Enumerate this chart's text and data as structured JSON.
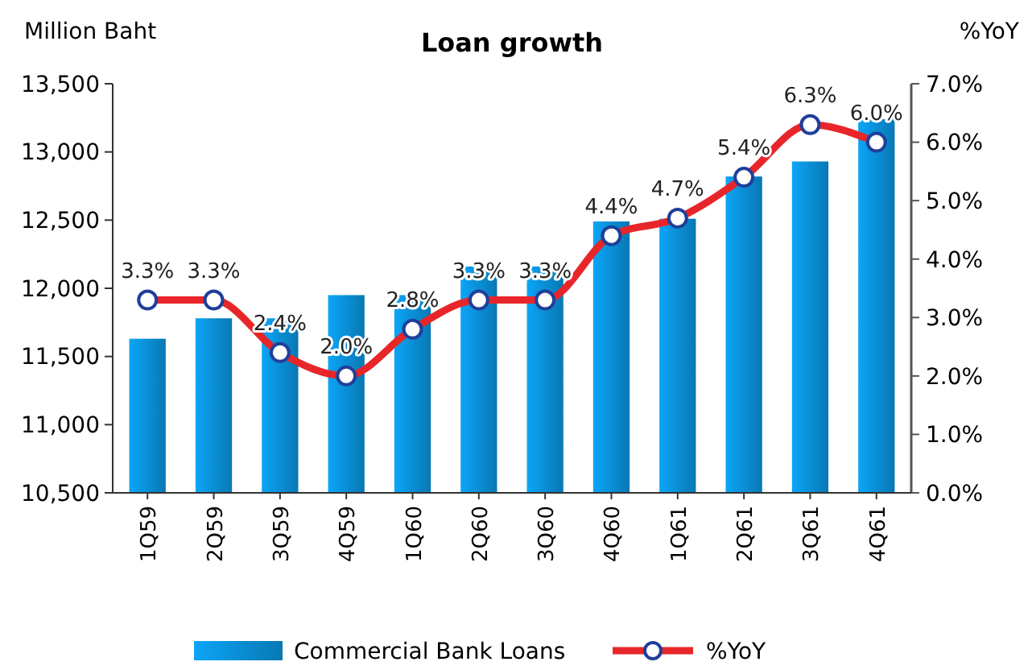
{
  "chart_data": {
    "type": "bar",
    "title": "Loan growth",
    "ylabel": "Million Baht",
    "y2label": "%YoY",
    "categories": [
      "1Q59",
      "2Q59",
      "3Q59",
      "4Q59",
      "1Q60",
      "2Q60",
      "3Q60",
      "4Q60",
      "1Q61",
      "2Q61",
      "3Q61",
      "4Q61"
    ],
    "series": [
      {
        "name": "Commercial Bank Loans",
        "color": "#0a8fd6",
        "values": [
          11630,
          11780,
          11780,
          11950,
          11950,
          12160,
          12160,
          12490,
          12510,
          12820,
          12930,
          13240
        ]
      },
      {
        "name": "%YoY",
        "type": "line",
        "axis": "y2",
        "color": "#e8262a",
        "marker": "circle",
        "value_labels": [
          "3.3%",
          "3.3%",
          "2.4%",
          "2.0%",
          "2.8%",
          "3.3%",
          "3.3%",
          "4.4%",
          "4.7%",
          "5.4%",
          "6.3%",
          "6.0%"
        ],
        "values": [
          3.3,
          3.3,
          2.4,
          2.0,
          2.8,
          3.3,
          3.3,
          4.4,
          4.7,
          5.4,
          6.3,
          6.0
        ]
      }
    ],
    "ylim": [
      10500,
      13500
    ],
    "yticks": [
      {
        "value": 10500,
        "label": "10,500"
      },
      {
        "value": 11000,
        "label": "11,000"
      },
      {
        "value": 11500,
        "label": "11,500"
      },
      {
        "value": 12000,
        "label": "12,000"
      },
      {
        "value": 12500,
        "label": "12,500"
      },
      {
        "value": 13000,
        "label": "13,000"
      },
      {
        "value": 13500,
        "label": "13,500"
      }
    ],
    "y2lim": [
      0,
      7
    ],
    "y2ticks": [
      {
        "value": 0,
        "label": "0.0%"
      },
      {
        "value": 1,
        "label": "1.0%"
      },
      {
        "value": 2,
        "label": "2.0%"
      },
      {
        "value": 3,
        "label": "3.0%"
      },
      {
        "value": 4,
        "label": "4.0%"
      },
      {
        "value": 5,
        "label": "5.0%"
      },
      {
        "value": 6,
        "label": "6.0%"
      },
      {
        "value": 7,
        "label": "7.0%"
      }
    ],
    "legend": "bottom",
    "grid": false
  }
}
